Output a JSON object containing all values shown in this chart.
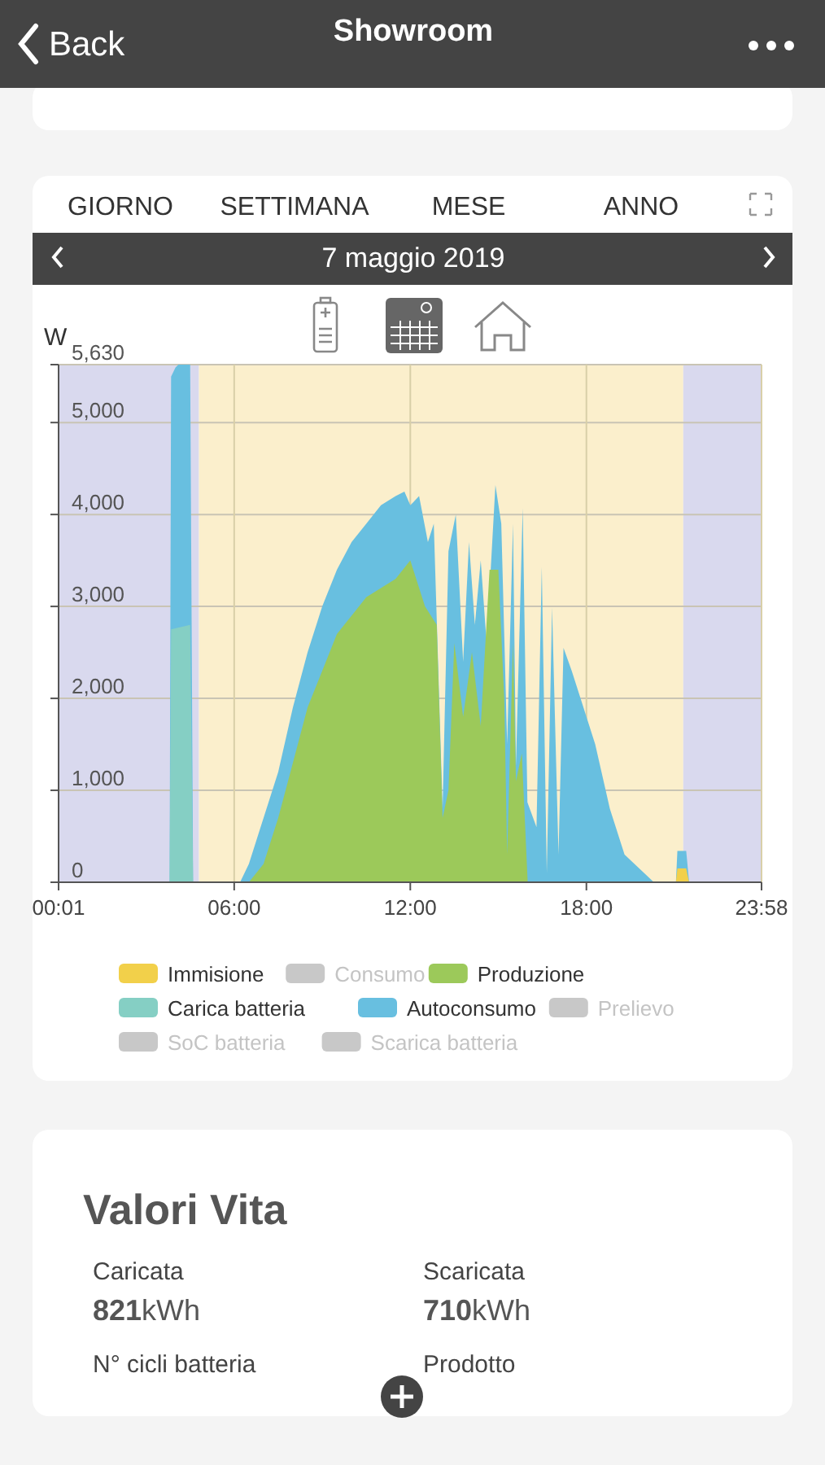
{
  "chart_data": [
    {
      "type": "other",
      "title": "Showroom",
      "annotations": [
        "Back"
      ]
    },
    {
      "type": "area",
      "title": "7 maggio 2019",
      "ylabel": "W",
      "annotations": [
        "GIORNO",
        "SETTIMANA",
        "MESE",
        "ANNO"
      ],
      "xlim": [
        0.0167,
        23.967
      ],
      "xticks": [
        {
          "value": 0.0167,
          "label": "00:01"
        },
        {
          "value": 6,
          "label": "06:00"
        },
        {
          "value": 12,
          "label": "12:00"
        },
        {
          "value": 18,
          "label": "18:00"
        },
        {
          "value": 23.967,
          "label": "23:58"
        }
      ],
      "ylim": [
        0,
        5630
      ],
      "yticks": [
        0,
        {
          "value": 1000,
          "label": "1,000"
        },
        {
          "value": 2000,
          "label": "2,000"
        },
        {
          "value": 3000,
          "label": "3,000"
        },
        {
          "value": 4000,
          "label": "4,000"
        },
        {
          "value": 5000,
          "label": "5,000"
        },
        {
          "value": 5630,
          "label": "5,630"
        }
      ],
      "grid": true,
      "legend": "bottom",
      "bands": [
        {
          "axis": "x",
          "from": 0.0167,
          "to": 4.8,
          "color": "#d9d9ee"
        },
        {
          "axis": "x",
          "from": 4.8,
          "to": 21.3,
          "color": "#fbefcc"
        },
        {
          "axis": "x",
          "from": 21.3,
          "to": 23.967,
          "color": "#d9d9ee"
        }
      ],
      "series": [
        {
          "name": "Immisione",
          "color": "#f2d04a",
          "x": [
            0.0167,
            21.05,
            21.1,
            21.4,
            21.5,
            23.967
          ],
          "values": [
            0,
            0,
            150,
            150,
            0,
            0
          ]
        },
        {
          "name": "Consumo",
          "color": "#c8c8c8"
        },
        {
          "name": "Produzione",
          "color": "#9cc95a",
          "x": [
            0.0167,
            6.5,
            7.0,
            7.5,
            8.0,
            8.5,
            9.0,
            9.5,
            10.0,
            10.5,
            11.0,
            11.5,
            12.0,
            12.5,
            12.9,
            13.1,
            13.3,
            13.5,
            13.8,
            14.1,
            14.4,
            14.7,
            15.0,
            15.2,
            15.3,
            15.5,
            15.6,
            15.8,
            16.0,
            23.967
          ],
          "values": [
            0,
            0,
            200,
            700,
            1300,
            1900,
            2300,
            2700,
            2900,
            3100,
            3200,
            3300,
            3500,
            3000,
            2800,
            700,
            1000,
            2600,
            1800,
            2500,
            1700,
            3400,
            3400,
            2000,
            300,
            2600,
            1100,
            1400,
            0,
            0
          ]
        },
        {
          "name": "Carica batteria",
          "color": "#85cfc4",
          "x": [
            0.0167,
            3.8,
            3.85,
            4.5,
            4.6,
            23.967
          ],
          "values": [
            0,
            0,
            2750,
            2800,
            0,
            0
          ]
        },
        {
          "name": "Autoconsumo",
          "color": "#68bfe0",
          "x": [
            0.0167,
            3.8,
            3.85,
            4.0,
            4.1,
            4.5,
            4.6,
            6.2,
            6.5,
            7.0,
            7.5,
            8.0,
            8.5,
            9.0,
            9.5,
            10.0,
            10.5,
            11.0,
            11.5,
            11.8,
            12.0,
            12.3,
            12.6,
            12.8,
            13.1,
            13.3,
            13.55,
            13.8,
            14.0,
            14.2,
            14.4,
            14.6,
            14.9,
            15.1,
            15.3,
            15.5,
            15.6,
            15.83,
            15.99,
            16.3,
            16.48,
            16.65,
            16.83,
            17.05,
            17.22,
            17.5,
            17.8,
            18.3,
            18.8,
            19.3,
            19.8,
            20.3,
            21.05,
            21.1,
            21.4,
            21.5,
            23.967
          ],
          "values": [
            0,
            0,
            5500,
            5600,
            5630,
            5630,
            0,
            0,
            200,
            700,
            1200,
            1900,
            2500,
            3000,
            3400,
            3700,
            3900,
            4100,
            4200,
            4250,
            4100,
            4200,
            3700,
            3900,
            800,
            3600,
            4000,
            2400,
            3700,
            2800,
            3500,
            2600,
            4320,
            3900,
            1500,
            3900,
            1270,
            4070,
            870,
            600,
            3430,
            100,
            2990,
            300,
            2550,
            2300,
            2000,
            1500,
            800,
            300,
            150,
            0,
            0,
            340,
            340,
            0,
            0
          ]
        },
        {
          "name": "Prelievo",
          "color": "#c8c8c8"
        },
        {
          "name": "SoC batteria",
          "color": "#c8c8c8"
        },
        {
          "name": "Scarica batteria",
          "color": "#c8c8c8"
        }
      ]
    },
    {
      "type": "other",
      "title": "Valori Vita",
      "annotations": [
        "Caricata",
        "821kWh",
        "Scaricata",
        "710kWh",
        "N° cicli batteria",
        "Prodotto"
      ]
    }
  ]
}
